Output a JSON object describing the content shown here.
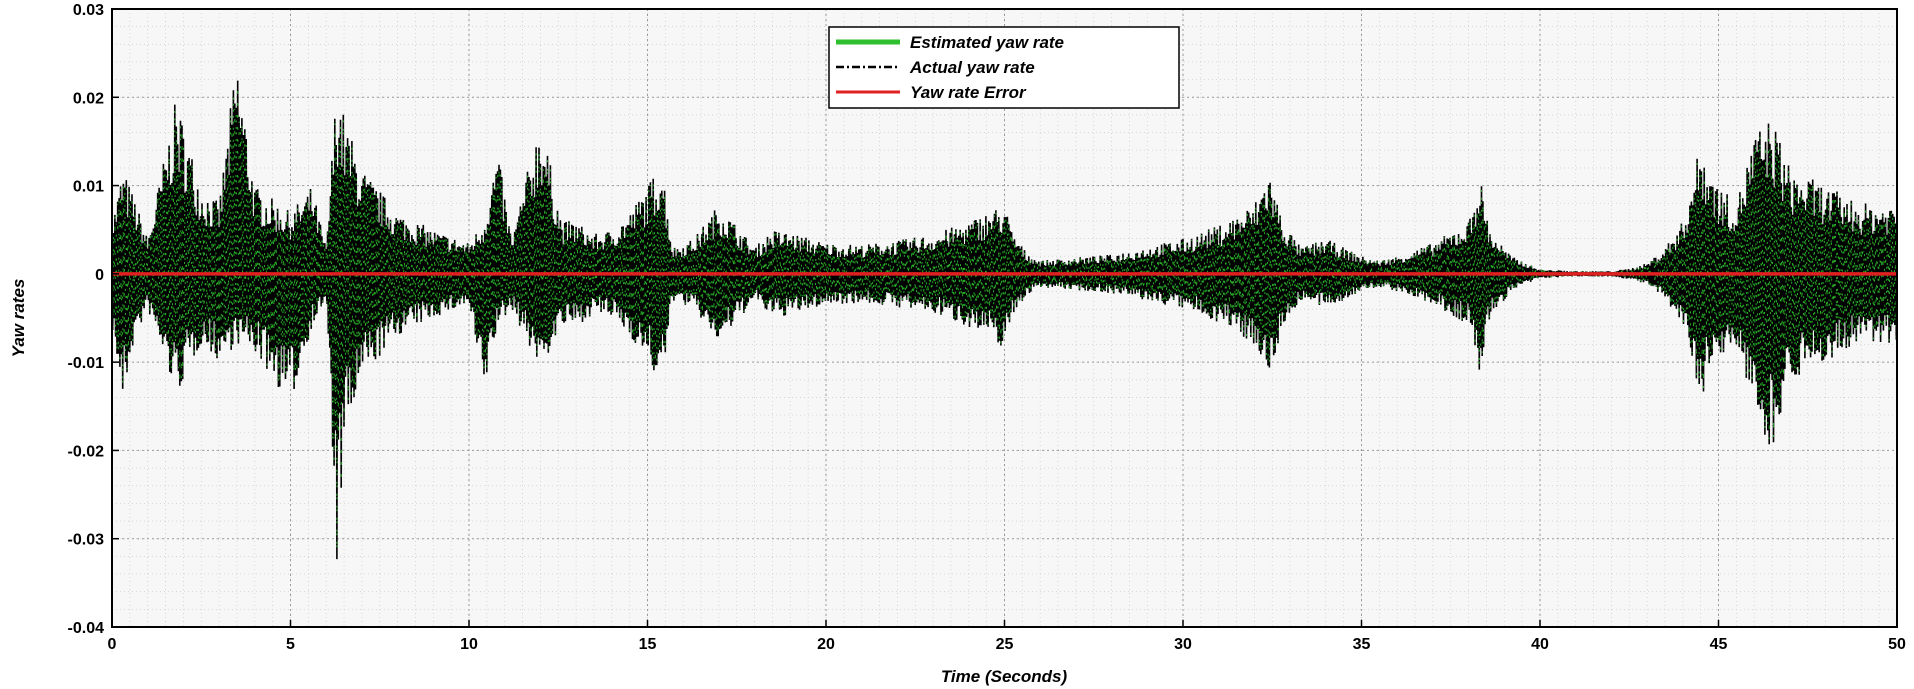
{
  "chart_data": {
    "type": "line",
    "title": "",
    "xlabel": "Time (Seconds)",
    "ylabel": "Yaw rates",
    "xlim": [
      0,
      50
    ],
    "ylim": [
      -0.04,
      0.03
    ],
    "x_ticks": [
      0,
      5,
      10,
      15,
      20,
      25,
      30,
      35,
      40,
      45,
      50
    ],
    "y_ticks": [
      -0.04,
      -0.03,
      -0.02,
      -0.01,
      0,
      0.01,
      0.02,
      0.03
    ],
    "x_tick_labels": [
      "0",
      "5",
      "10",
      "15",
      "20",
      "25",
      "30",
      "35",
      "40",
      "45",
      "50"
    ],
    "y_tick_labels": [
      "-0.04",
      "-0.03",
      "-0.02",
      "-0.01",
      "0",
      "0.01",
      "0.02",
      "0.03"
    ],
    "grid": true,
    "legend_position": "top-center",
    "series": [
      {
        "name": "Estimated yaw rate",
        "color": "#2ec02e",
        "style": "solid",
        "envelope": {
          "t": [
            0,
            0.3,
            0.6,
            1.0,
            1.8,
            2.5,
            3.0,
            3.5,
            4.0,
            5.0,
            5.6,
            6.0,
            6.3,
            6.5,
            7.0,
            8.0,
            9.0,
            10.0,
            10.4,
            10.8,
            11.2,
            12.0,
            12.6,
            13.0,
            13.5,
            14.0,
            14.5,
            15.0,
            15.4,
            15.7,
            16.3,
            17.0,
            18.0,
            18.5,
            19.0,
            20.0,
            21.0,
            22.0,
            23.0,
            24.0,
            25.0,
            25.2,
            25.6,
            26.0,
            28.0,
            30.0,
            31.0,
            32.0,
            32.4,
            32.8,
            33.3,
            34.0,
            35.0,
            35.5,
            36.0,
            37.0,
            38.0,
            38.3,
            38.6,
            39.2,
            40.0,
            40.5,
            41.0,
            42.0,
            42.5,
            43.0,
            43.5,
            44.0,
            44.5,
            45.0,
            45.5,
            46.0,
            46.5,
            47.0,
            48.0,
            49.0,
            50.0
          ],
          "upper": [
            0.006,
            0.012,
            0.009,
            0.004,
            0.02,
            0.01,
            0.008,
            0.025,
            0.01,
            0.007,
            0.01,
            0.003,
            0.0225,
            0.018,
            0.012,
            0.007,
            0.005,
            0.0035,
            0.006,
            0.014,
            0.004,
            0.018,
            0.006,
            0.006,
            0.0045,
            0.005,
            0.007,
            0.01,
            0.013,
            0.003,
            0.004,
            0.008,
            0.003,
            0.005,
            0.0047,
            0.0035,
            0.0033,
            0.0038,
            0.0045,
            0.006,
            0.008,
            0.005,
            0.0025,
            0.0015,
            0.0022,
            0.004,
            0.0055,
            0.008,
            0.012,
            0.006,
            0.003,
            0.004,
            0.002,
            0.0015,
            0.002,
            0.0035,
            0.006,
            0.0115,
            0.005,
            0.002,
            0.0005,
            0.0004,
            0.0003,
            0.0003,
            0.0006,
            0.0012,
            0.003,
            0.006,
            0.015,
            0.01,
            0.008,
            0.016,
            0.018,
            0.012,
            0.01,
            0.008,
            0.008
          ],
          "lower": [
            -0.006,
            -0.015,
            -0.008,
            -0.004,
            -0.014,
            -0.008,
            -0.01,
            -0.008,
            -0.009,
            -0.015,
            -0.006,
            -0.003,
            -0.0335,
            -0.02,
            -0.012,
            -0.007,
            -0.005,
            -0.0035,
            -0.014,
            -0.006,
            -0.004,
            -0.011,
            -0.006,
            -0.006,
            -0.0045,
            -0.005,
            -0.007,
            -0.01,
            -0.013,
            -0.003,
            -0.004,
            -0.008,
            -0.003,
            -0.005,
            -0.0047,
            -0.0035,
            -0.0033,
            -0.0038,
            -0.0045,
            -0.006,
            -0.0085,
            -0.005,
            -0.0025,
            -0.0015,
            -0.0022,
            -0.004,
            -0.0055,
            -0.008,
            -0.012,
            -0.006,
            -0.003,
            -0.004,
            -0.002,
            -0.0015,
            -0.002,
            -0.0035,
            -0.006,
            -0.0115,
            -0.005,
            -0.002,
            -0.0005,
            -0.0004,
            -0.0003,
            -0.0003,
            -0.0006,
            -0.0012,
            -0.003,
            -0.006,
            -0.014,
            -0.01,
            -0.008,
            -0.016,
            -0.02,
            -0.012,
            -0.01,
            -0.008,
            -0.008
          ]
        }
      },
      {
        "name": "Actual yaw rate",
        "color": "#000000",
        "style": "dash-dot",
        "envelope": "same as estimated yaw rate"
      },
      {
        "name": "Yaw rate Error",
        "color": "#e02020",
        "style": "solid",
        "x": [
          0,
          10,
          20,
          30,
          40,
          50
        ],
        "values": [
          0,
          0,
          0,
          0,
          0,
          0
        ]
      }
    ]
  }
}
